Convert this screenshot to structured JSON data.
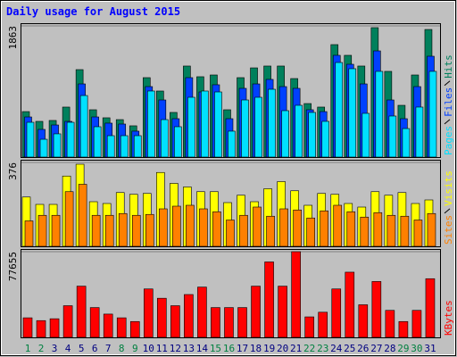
{
  "chart_data": [
    {
      "type": "bar",
      "title": "Daily usage for August 2015",
      "ylim": [
        0,
        1863
      ],
      "yticks": [
        1863
      ],
      "series": [
        {
          "name": "Hits",
          "color": "#00805c",
          "values": [
            646,
            507,
            520,
            710,
            1242,
            672,
            558,
            532,
            444,
            1128,
            938,
            634,
            1293,
            1141,
            1166,
            672,
            1128,
            1267,
            1293,
            1293,
            1115,
            760,
            710,
            1597,
            1445,
            1293,
            1838,
            1217,
            735,
            1166,
            1812
          ]
        },
        {
          "name": "Files",
          "color": "#0040ff",
          "values": [
            570,
            393,
            456,
            507,
            1039,
            570,
            482,
            469,
            368,
            1001,
            811,
            545,
            1128,
            925,
            1027,
            545,
            976,
            1039,
            1103,
            1001,
            976,
            672,
            646,
            1445,
            1318,
            1039,
            1508,
            811,
            545,
            1001,
            1432
          ]
        },
        {
          "name": "Pages",
          "color": "#00e0ff",
          "values": [
            494,
            253,
            330,
            494,
            874,
            431,
            304,
            304,
            304,
            938,
            532,
            431,
            849,
            938,
            925,
            368,
            811,
            849,
            963,
            659,
            735,
            634,
            507,
            1343,
            1255,
            621,
            1217,
            583,
            405,
            710,
            1217
          ]
        }
      ]
    },
    {
      "type": "bar",
      "ylim": [
        0,
        376
      ],
      "yticks": [
        376
      ],
      "series": [
        {
          "name": "Visits",
          "color": "#ffff00",
          "values": [
            221,
            188,
            188,
            315,
            368,
            200,
            192,
            241,
            233,
            237,
            331,
            282,
            266,
            245,
            245,
            196,
            229,
            200,
            258,
            290,
            249,
            184,
            237,
            233,
            192,
            176,
            245,
            229,
            241,
            192,
            208
          ]
        },
        {
          "name": "Sites",
          "color": "#ff8000",
          "values": [
            114,
            139,
            139,
            245,
            278,
            139,
            139,
            147,
            139,
            143,
            168,
            180,
            184,
            168,
            155,
            118,
            139,
            176,
            135,
            168,
            163,
            127,
            159,
            184,
            155,
            131,
            151,
            139,
            135,
            118,
            147
          ]
        }
      ]
    },
    {
      "type": "bar",
      "ylim": [
        0,
        77655
      ],
      "yticks": [
        77655
      ],
      "categories": [
        "1",
        "2",
        "3",
        "4",
        "5",
        "6",
        "7",
        "8",
        "9",
        "10",
        "11",
        "12",
        "13",
        "14",
        "15",
        "16",
        "17",
        "18",
        "19",
        "20",
        "21",
        "22",
        "23",
        "24",
        "25",
        "26",
        "27",
        "28",
        "29",
        "30",
        "31"
      ],
      "category_colors": [
        "#008040",
        "#008040",
        "#000080",
        "#000080",
        "#000080",
        "#000080",
        "#000080",
        "#008040",
        "#008040",
        "#000080",
        "#000080",
        "#000080",
        "#000080",
        "#000080",
        "#008040",
        "#008040",
        "#000080",
        "#000080",
        "#000080",
        "#000080",
        "#000080",
        "#008040",
        "#008040",
        "#000080",
        "#000080",
        "#000080",
        "#000080",
        "#000080",
        "#008040",
        "#008040",
        "#000080"
      ],
      "series": [
        {
          "name": "KBytes",
          "color": "#ff0000",
          "values": [
            17725,
            15193,
            16881,
            28699,
            46425,
            27011,
            21103,
            17725,
            14349,
            43893,
            35453,
            28699,
            38830,
            45581,
            27011,
            27011,
            27011,
            46425,
            68371,
            46425,
            77655,
            18570,
            22790,
            43893,
            59086,
            29543,
            50645,
            24478,
            14349,
            24478,
            53177
          ]
        }
      ]
    }
  ]
}
